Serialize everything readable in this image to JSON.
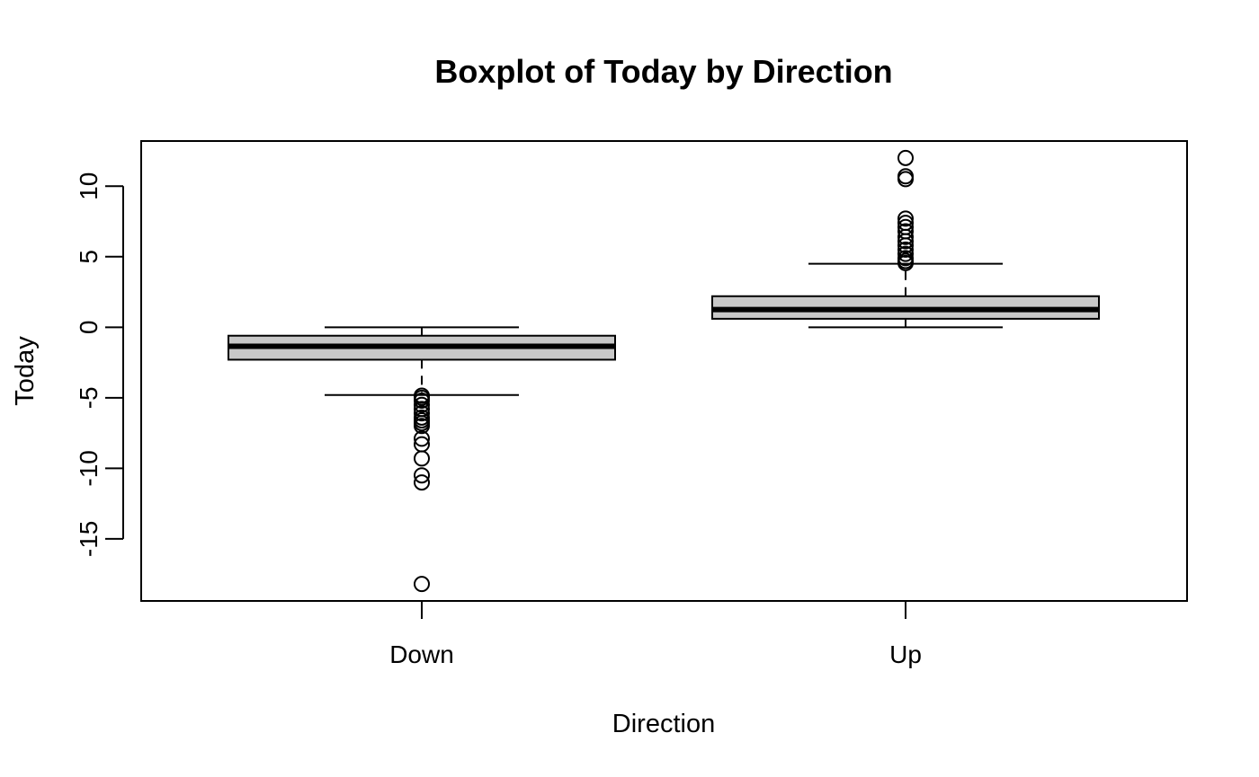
{
  "chart_data": {
    "type": "boxplot",
    "title": "Boxplot of Today by Direction",
    "xlabel": "Direction",
    "ylabel": "Today",
    "categories": [
      "Down",
      "Up"
    ],
    "ylim": [
      -19.4,
      13.2
    ],
    "yticks": [
      -15,
      -10,
      -5,
      0,
      5,
      10
    ],
    "grid": false,
    "colors": {
      "box_fill": "#c8c8c8",
      "stroke": "#000000",
      "background": "#ffffff"
    },
    "boxes": [
      {
        "category": "Down",
        "whisker_low": -4.8,
        "q1": -2.3,
        "median": -1.35,
        "q3": -0.6,
        "whisker_high": 0.0,
        "outliers": [
          -4.85,
          -5.0,
          -5.2,
          -5.5,
          -5.8,
          -6.1,
          -6.4,
          -6.6,
          -6.8,
          -7.0,
          -7.9,
          -8.3,
          -9.3,
          -10.5,
          -11.0,
          -18.2
        ]
      },
      {
        "category": "Up",
        "whisker_low": 0.0,
        "q1": 0.6,
        "median": 1.25,
        "q3": 2.2,
        "whisker_high": 4.5,
        "outliers": [
          4.55,
          4.7,
          4.9,
          5.2,
          5.5,
          5.8,
          6.1,
          6.4,
          6.8,
          7.1,
          7.4,
          7.7,
          10.5,
          10.7,
          12.0
        ]
      }
    ]
  }
}
